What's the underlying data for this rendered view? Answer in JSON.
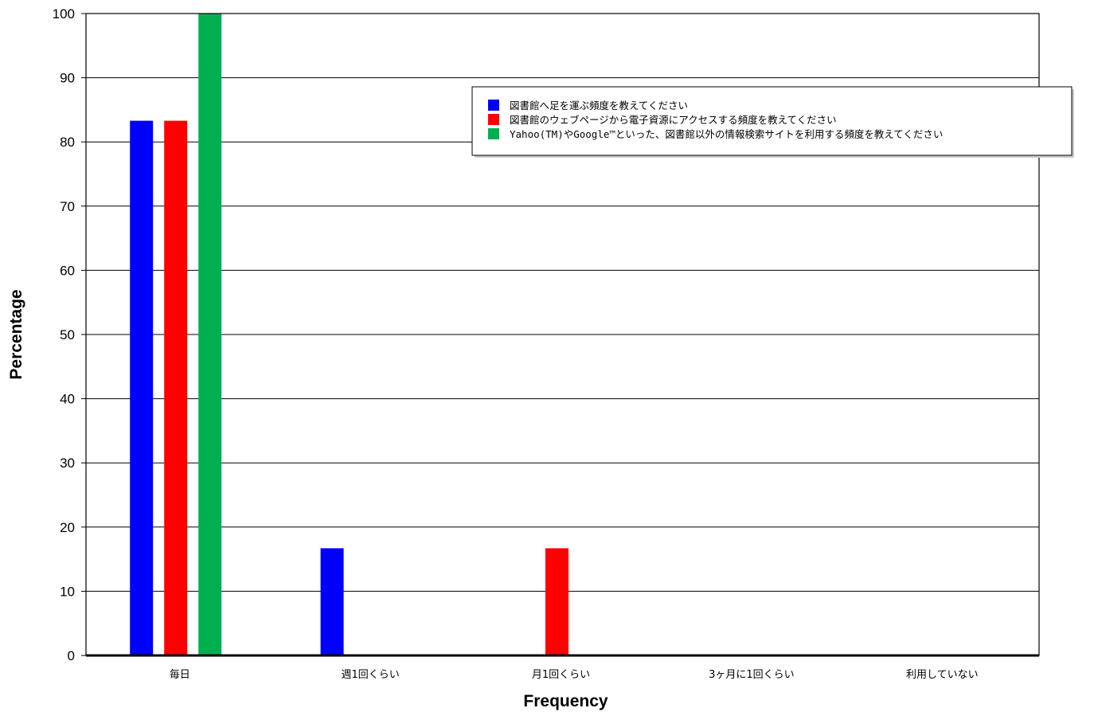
{
  "chart_data": {
    "type": "bar",
    "xlabel": "Frequency",
    "ylabel": "Percentage",
    "ylim": [
      0,
      100
    ],
    "yticks": [
      0,
      10,
      20,
      30,
      40,
      50,
      60,
      70,
      80,
      90,
      100
    ],
    "grid": true,
    "legend_position": "top-right",
    "categories": [
      "毎日",
      "週1回くらい",
      "月1回くらい",
      "3ヶ月に1回くらい",
      "利用していない"
    ],
    "series": [
      {
        "name": "図書館へ足を運ぶ頻度を教えてください",
        "color": "#0000ff",
        "values": [
          83.3,
          16.7,
          0,
          0,
          0
        ]
      },
      {
        "name": "図書館のウェブページから電子資源にアクセスする頻度を教えてください",
        "color": "#ff0000",
        "values": [
          83.3,
          0,
          16.7,
          0,
          0
        ]
      },
      {
        "name": "Yahoo(TM)やGoogle™といった、図書館以外の情報検索サイトを利用する頻度を教えてください",
        "color": "#00b050",
        "values": [
          100,
          0,
          0,
          0,
          0
        ]
      }
    ]
  }
}
